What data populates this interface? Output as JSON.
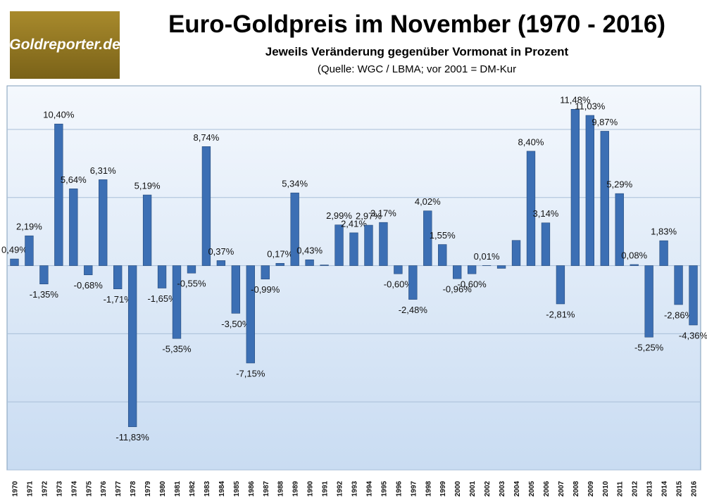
{
  "chart_data": {
    "type": "bar",
    "logo": "Goldreporter.de",
    "title": "Euro-Goldpreis im November (1970 - 2016)",
    "subtitle": "Jeweils Veränderung gegenüber Vormonat in Prozent",
    "source": "(Quelle: WGC / LBMA; vor 2001 = DM-Kur",
    "categories": [
      "1970",
      "1971",
      "1972",
      "1973",
      "1974",
      "1975",
      "1976",
      "1977",
      "1978",
      "1979",
      "1980",
      "1981",
      "1982",
      "1983",
      "1984",
      "1985",
      "1986",
      "1987",
      "1988",
      "1989",
      "1990",
      "1991",
      "1992",
      "1993",
      "1994",
      "1995",
      "1996",
      "1997",
      "1998",
      "1999",
      "2000",
      "2001",
      "2002",
      "2003",
      "2004",
      "2005",
      "2006",
      "2007",
      "2008",
      "2009",
      "2010",
      "2011",
      "2012",
      "2013",
      "2014",
      "2015",
      "2016"
    ],
    "values": [
      0.49,
      2.19,
      -1.35,
      10.4,
      5.64,
      -0.68,
      6.31,
      -1.71,
      -11.83,
      5.19,
      -1.65,
      -5.35,
      -0.55,
      8.74,
      0.37,
      -3.5,
      -7.15,
      -0.99,
      0.17,
      5.34,
      0.43,
      0.05,
      2.99,
      2.41,
      2.97,
      3.17,
      -0.6,
      -2.48,
      4.02,
      1.55,
      -0.96,
      -0.6,
      0.01,
      -0.2,
      1.85,
      8.4,
      3.14,
      -2.81,
      11.48,
      11.03,
      9.87,
      5.29,
      0.08,
      -5.25,
      1.83,
      -2.86,
      -4.36
    ],
    "value_labels": [
      "0,49%",
      "2,19%",
      "-1,35%",
      "10,40%",
      "5,64%",
      "-0,68%",
      "6,31%",
      "-1,71%",
      "-11,83%",
      "5,19%",
      "-1,65%",
      "-5,35%",
      "-0,55%",
      "8,74%",
      "0,37%",
      "-3,50%",
      "-7,15%",
      "-0,99%",
      "0,17%",
      "5,34%",
      "0,43%",
      null,
      "2,99%",
      "2,41%",
      "2,97%",
      "3,17%",
      "-0,60%",
      "-2,48%",
      "4,02%",
      "1,55%",
      "-0,96%",
      "-0,60%",
      "0,01%",
      null,
      null,
      "8,40%",
      "3,14%",
      "-2,81%",
      "11,48%",
      "11,03%",
      "9,87%",
      "5,29%",
      "0,08%",
      "-5,25%",
      "1,83%",
      "-2,86%",
      "-4,36%"
    ],
    "color": "#3c6fb4",
    "ylim": [
      -15,
      13.2
    ],
    "yticks": [
      -15,
      -10,
      -5,
      0,
      5,
      10
    ],
    "grid": true
  }
}
